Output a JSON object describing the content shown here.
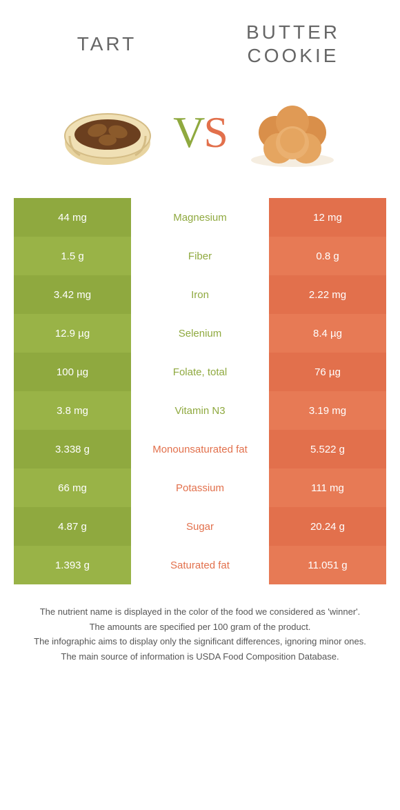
{
  "colors": {
    "green_a": "#8fa93f",
    "green_b": "#99b347",
    "orange_a": "#e2704c",
    "orange_b": "#e77a55",
    "mid_green": "#8fa93f",
    "mid_orange": "#e2704c",
    "text_gray": "#666666"
  },
  "header": {
    "left_title": "TART",
    "right_title": "BUTTER\nCOOKIE",
    "vs": "VS"
  },
  "rows": [
    {
      "left": "44 mg",
      "label": "Magnesium",
      "right": "12 mg",
      "winner": "left"
    },
    {
      "left": "1.5 g",
      "label": "Fiber",
      "right": "0.8 g",
      "winner": "left"
    },
    {
      "left": "3.42 mg",
      "label": "Iron",
      "right": "2.22 mg",
      "winner": "left"
    },
    {
      "left": "12.9 µg",
      "label": "Selenium",
      "right": "8.4 µg",
      "winner": "left"
    },
    {
      "left": "100 µg",
      "label": "Folate, total",
      "right": "76 µg",
      "winner": "left"
    },
    {
      "left": "3.8 mg",
      "label": "Vitamin N3",
      "right": "3.19 mg",
      "winner": "left"
    },
    {
      "left": "3.338 g",
      "label": "Monounsaturated fat",
      "right": "5.522 g",
      "winner": "right"
    },
    {
      "left": "66 mg",
      "label": "Potassium",
      "right": "111 mg",
      "winner": "right"
    },
    {
      "left": "4.87 g",
      "label": "Sugar",
      "right": "20.24 g",
      "winner": "right"
    },
    {
      "left": "1.393 g",
      "label": "Saturated fat",
      "right": "11.051 g",
      "winner": "right"
    }
  ],
  "footer": {
    "l1": "The nutrient name is displayed in the color of the food we considered as 'winner'.",
    "l2": "The amounts are specified per 100 gram of the product.",
    "l3": "The infographic aims to display only the significant differences, ignoring minor ones.",
    "l4": "The main source of information is USDA Food Composition Database."
  }
}
